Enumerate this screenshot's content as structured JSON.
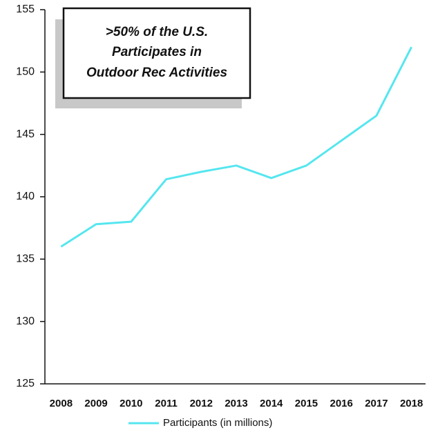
{
  "chart_data": {
    "type": "line",
    "annotation": [
      ">50% of the U.S.",
      "Participates in",
      "Outdoor Rec Activities"
    ],
    "categories": [
      "2008",
      "2009",
      "2010",
      "2011",
      "2012",
      "2013",
      "2014",
      "2015",
      "2016",
      "2017",
      "2018"
    ],
    "series": [
      {
        "name": "Participants (in millions)",
        "color": "#55e6ef",
        "values": [
          136.0,
          137.8,
          138.0,
          141.4,
          142.0,
          142.5,
          141.5,
          142.5,
          144.5,
          146.5,
          152.0
        ]
      }
    ],
    "ylim": [
      125,
      155
    ],
    "yticks": [
      125,
      130,
      135,
      140,
      145,
      150,
      155
    ],
    "grid": false,
    "legend": "bottom"
  }
}
